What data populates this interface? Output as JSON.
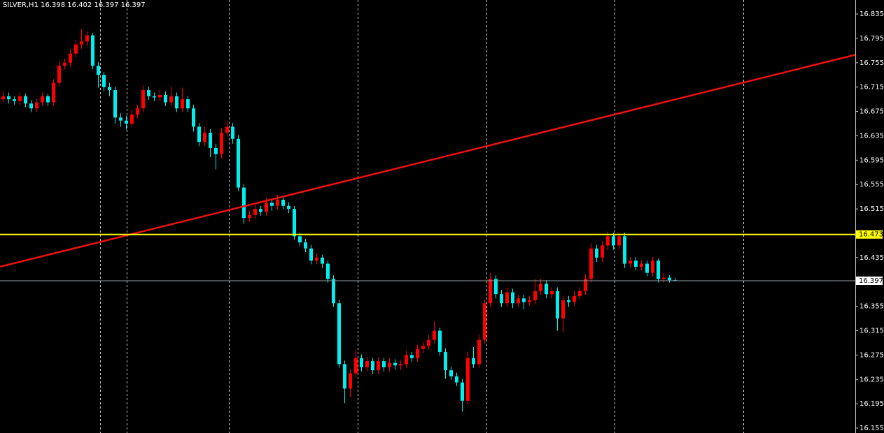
{
  "chart_data": {
    "type": "candlestick",
    "title": "SILVER,H1  16.398 16.402 16.397 16.397",
    "up_color": "#ff0000",
    "down_color": "#00eeee",
    "ylim": [
      16.147,
      16.858
    ],
    "yticks": [
      16.835,
      16.795,
      16.755,
      16.715,
      16.675,
      16.635,
      16.595,
      16.555,
      16.515,
      16.435,
      16.355,
      16.315,
      16.275,
      16.235,
      16.195,
      16.155
    ],
    "hline": {
      "value": 16.473,
      "color": "#ffff00"
    },
    "bid": {
      "value": 16.397,
      "color": "#9aa0a6"
    },
    "trendline": {
      "start": 16.42,
      "end": 16.768,
      "color": "#ee1111"
    },
    "candles": [
      [
        16.695,
        16.708,
        16.69,
        16.7
      ],
      [
        16.7,
        16.706,
        16.688,
        16.695
      ],
      [
        16.695,
        16.7,
        16.686,
        16.692
      ],
      [
        16.692,
        16.706,
        16.686,
        16.7
      ],
      [
        16.7,
        16.704,
        16.682,
        16.688
      ],
      [
        16.688,
        16.694,
        16.674,
        16.68
      ],
      [
        16.68,
        16.696,
        16.674,
        16.69
      ],
      [
        16.69,
        16.706,
        16.684,
        16.7
      ],
      [
        16.7,
        16.704,
        16.684,
        16.69
      ],
      [
        16.69,
        16.728,
        16.684,
        16.722
      ],
      [
        16.722,
        16.758,
        16.716,
        16.75
      ],
      [
        16.75,
        16.762,
        16.744,
        16.755
      ],
      [
        16.755,
        16.778,
        16.748,
        16.77
      ],
      [
        16.77,
        16.792,
        16.764,
        16.785
      ],
      [
        16.785,
        16.81,
        16.778,
        16.79
      ],
      [
        16.79,
        16.806,
        16.782,
        16.8
      ],
      [
        16.8,
        16.804,
        16.744,
        16.75
      ],
      [
        16.75,
        16.756,
        16.714,
        16.735
      ],
      [
        16.735,
        16.74,
        16.708,
        16.715
      ],
      [
        16.715,
        16.722,
        16.7,
        16.71
      ],
      [
        16.71,
        16.716,
        16.655,
        16.665
      ],
      [
        16.665,
        16.672,
        16.65,
        16.66
      ],
      [
        16.66,
        16.668,
        16.645,
        16.655
      ],
      [
        16.655,
        16.678,
        16.65,
        16.67
      ],
      [
        16.67,
        16.686,
        16.664,
        16.68
      ],
      [
        16.68,
        16.718,
        16.674,
        16.71
      ],
      [
        16.71,
        16.716,
        16.694,
        16.7
      ],
      [
        16.7,
        16.706,
        16.692,
        16.698
      ],
      [
        16.698,
        16.71,
        16.692,
        16.702
      ],
      [
        16.702,
        16.708,
        16.684,
        16.69
      ],
      [
        16.69,
        16.716,
        16.684,
        16.7
      ],
      [
        16.7,
        16.706,
        16.674,
        16.68
      ],
      [
        16.68,
        16.714,
        16.674,
        16.695
      ],
      [
        16.695,
        16.7,
        16.674,
        16.68
      ],
      [
        16.68,
        16.686,
        16.642,
        16.65
      ],
      [
        16.65,
        16.656,
        16.618,
        16.625
      ],
      [
        16.625,
        16.65,
        16.618,
        16.64
      ],
      [
        16.64,
        16.646,
        16.6,
        16.615
      ],
      [
        16.615,
        16.622,
        16.58,
        16.605
      ],
      [
        16.605,
        16.648,
        16.598,
        16.64
      ],
      [
        16.64,
        16.66,
        16.634,
        16.65
      ],
      [
        16.65,
        16.656,
        16.622,
        16.63
      ],
      [
        16.63,
        16.636,
        16.544,
        16.55
      ],
      [
        16.55,
        16.556,
        16.49,
        16.5
      ],
      [
        16.5,
        16.512,
        16.494,
        16.505
      ],
      [
        16.505,
        16.522,
        16.498,
        16.515
      ],
      [
        16.515,
        16.52,
        16.504,
        16.51
      ],
      [
        16.51,
        16.534,
        16.504,
        16.525
      ],
      [
        16.525,
        16.532,
        16.512,
        16.52
      ],
      [
        16.52,
        16.538,
        16.514,
        16.53
      ],
      [
        16.53,
        16.536,
        16.514,
        16.52
      ],
      [
        16.52,
        16.526,
        16.508,
        16.515
      ],
      [
        16.515,
        16.52,
        16.464,
        16.47
      ],
      [
        16.47,
        16.476,
        16.454,
        16.46
      ],
      [
        16.46,
        16.466,
        16.444,
        16.45
      ],
      [
        16.45,
        16.456,
        16.424,
        16.43
      ],
      [
        16.43,
        16.442,
        16.424,
        16.435
      ],
      [
        16.435,
        16.44,
        16.418,
        16.425
      ],
      [
        16.425,
        16.43,
        16.394,
        16.4
      ],
      [
        16.4,
        16.406,
        16.354,
        16.36
      ],
      [
        16.36,
        16.366,
        16.254,
        16.26
      ],
      [
        16.26,
        16.266,
        16.196,
        16.22
      ],
      [
        16.22,
        16.252,
        16.206,
        16.245
      ],
      [
        16.245,
        16.284,
        16.238,
        16.27
      ],
      [
        16.27,
        16.276,
        16.248,
        16.255
      ],
      [
        16.255,
        16.272,
        16.248,
        16.265
      ],
      [
        16.265,
        16.27,
        16.244,
        16.25
      ],
      [
        16.25,
        16.272,
        16.244,
        16.265
      ],
      [
        16.265,
        16.27,
        16.248,
        16.255
      ],
      [
        16.255,
        16.27,
        16.248,
        16.262
      ],
      [
        16.262,
        16.268,
        16.252,
        16.258
      ],
      [
        16.258,
        16.266,
        16.25,
        16.26
      ],
      [
        16.26,
        16.282,
        16.254,
        16.275
      ],
      [
        16.275,
        16.28,
        16.264,
        16.27
      ],
      [
        16.27,
        16.292,
        16.264,
        16.285
      ],
      [
        16.285,
        16.296,
        16.278,
        16.29
      ],
      [
        16.29,
        16.308,
        16.284,
        16.3
      ],
      [
        16.3,
        16.33,
        16.294,
        16.315
      ],
      [
        16.315,
        16.32,
        16.274,
        16.28
      ],
      [
        16.28,
        16.286,
        16.236,
        16.25
      ],
      [
        16.25,
        16.256,
        16.234,
        16.24
      ],
      [
        16.24,
        16.246,
        16.224,
        16.23
      ],
      [
        16.23,
        16.236,
        16.182,
        16.2
      ],
      [
        16.2,
        16.28,
        16.194,
        16.27
      ],
      [
        16.27,
        16.288,
        16.254,
        16.26
      ],
      [
        16.26,
        16.308,
        16.254,
        16.3
      ],
      [
        16.3,
        16.366,
        16.294,
        16.36
      ],
      [
        16.36,
        16.41,
        16.354,
        16.4
      ],
      [
        16.4,
        16.406,
        16.368,
        16.375
      ],
      [
        16.375,
        16.382,
        16.354,
        16.36
      ],
      [
        16.36,
        16.386,
        16.354,
        16.378
      ],
      [
        16.378,
        16.384,
        16.352,
        16.36
      ],
      [
        16.36,
        16.374,
        16.354,
        16.368
      ],
      [
        16.368,
        16.374,
        16.35,
        16.362
      ],
      [
        16.362,
        16.372,
        16.356,
        16.365
      ],
      [
        16.365,
        16.4,
        16.358,
        16.38
      ],
      [
        16.38,
        16.4,
        16.374,
        16.392
      ],
      [
        16.392,
        16.398,
        16.368,
        16.375
      ],
      [
        16.375,
        16.386,
        16.368,
        16.38
      ],
      [
        16.38,
        16.386,
        16.315,
        16.335
      ],
      [
        16.335,
        16.372,
        16.312,
        16.365
      ],
      [
        16.365,
        16.372,
        16.354,
        16.362
      ],
      [
        16.362,
        16.38,
        16.356,
        16.372
      ],
      [
        16.372,
        16.386,
        16.366,
        16.38
      ],
      [
        16.38,
        16.408,
        16.374,
        16.4
      ],
      [
        16.4,
        16.458,
        16.394,
        16.45
      ],
      [
        16.45,
        16.456,
        16.428,
        16.435
      ],
      [
        16.435,
        16.462,
        16.428,
        16.455
      ],
      [
        16.455,
        16.478,
        16.448,
        16.47
      ],
      [
        16.47,
        16.476,
        16.448,
        16.455
      ],
      [
        16.455,
        16.476,
        16.448,
        16.47
      ],
      [
        16.47,
        16.476,
        16.418,
        16.425
      ],
      [
        16.425,
        16.436,
        16.418,
        16.43
      ],
      [
        16.43,
        16.436,
        16.414,
        16.42
      ],
      [
        16.42,
        16.43,
        16.414,
        16.425
      ],
      [
        16.425,
        16.43,
        16.404,
        16.41
      ],
      [
        16.41,
        16.436,
        16.404,
        16.43
      ],
      [
        16.43,
        16.434,
        16.394,
        16.4
      ],
      [
        16.4,
        16.41,
        16.394,
        16.402
      ],
      [
        16.402,
        16.406,
        16.394,
        16.398
      ],
      [
        16.398,
        16.402,
        16.397,
        16.397
      ]
    ]
  }
}
